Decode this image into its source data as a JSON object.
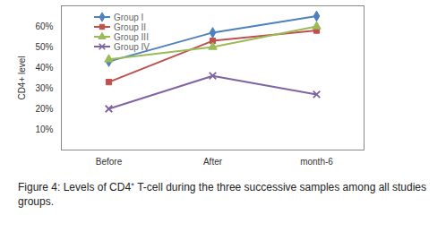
{
  "chart_data": {
    "type": "line",
    "caption": "Figure 4: Levels of CD4⁺ T-cell during the three successive samples among all studies groups.",
    "y_label": "CD4+ level",
    "categories": [
      "Before",
      "After",
      "month-6"
    ],
    "series": [
      {
        "name": "Group I",
        "color": "#4f81bd",
        "marker": "diamond",
        "values": [
          43,
          57,
          65
        ]
      },
      {
        "name": "Group II",
        "color": "#c0504d",
        "marker": "square",
        "values": [
          33,
          53,
          58
        ]
      },
      {
        "name": "Group III",
        "color": "#9bbb59",
        "marker": "triangle",
        "values": [
          44,
          50,
          60
        ]
      },
      {
        "name": "Group IV",
        "color": "#8064a2",
        "marker": "times",
        "values": [
          20,
          36,
          27
        ]
      }
    ],
    "ylim": [
      0,
      70
    ],
    "yticks": [
      {
        "value": 10,
        "label": "10%"
      },
      {
        "value": 20,
        "label": "20%"
      },
      {
        "value": 30,
        "label": "30%"
      },
      {
        "value": 40,
        "label": "40%"
      },
      {
        "value": 50,
        "label": "50%"
      },
      {
        "value": 60,
        "label": "60%"
      }
    ],
    "grid": false,
    "legend": "upper left"
  }
}
